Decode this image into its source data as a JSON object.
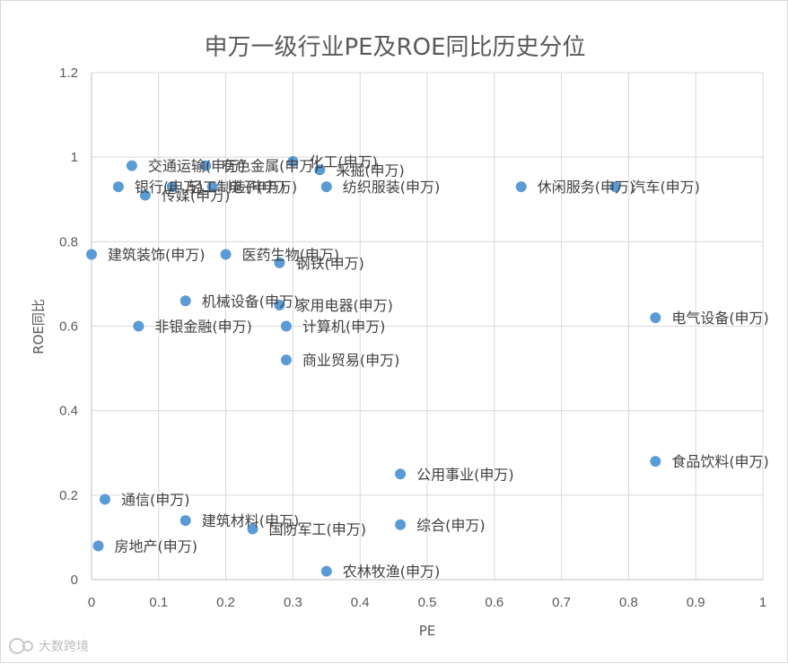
{
  "chart_data": {
    "type": "scatter",
    "title": "申万一级行业PE及ROE同比历史分位",
    "xlabel": "PE",
    "ylabel": "ROE同比",
    "xlim": [
      0,
      1
    ],
    "ylim": [
      0,
      1.2
    ],
    "x_ticks": [
      "0",
      "0.1",
      "0.2",
      "0.3",
      "0.4",
      "0.5",
      "0.6",
      "0.7",
      "0.8",
      "0.9",
      "1"
    ],
    "y_ticks": [
      "0",
      "0.2",
      "0.4",
      "0.6",
      "0.8",
      "1",
      "1.2"
    ],
    "grid": true,
    "marker_color": "#5b9bd5",
    "points": [
      {
        "label": "交通运输(申万)",
        "x": 0.06,
        "y": 0.98
      },
      {
        "label": "有色金属(申万)",
        "x": 0.17,
        "y": 0.98
      },
      {
        "label": "化工(申万)",
        "x": 0.3,
        "y": 0.99
      },
      {
        "label": "采掘(申万)",
        "x": 0.34,
        "y": 0.97
      },
      {
        "label": "银行(申万)",
        "x": 0.04,
        "y": 0.93
      },
      {
        "label": "轻工制造(申万)",
        "x": 0.12,
        "y": 0.93
      },
      {
        "label": "电子(申万)",
        "x": 0.18,
        "y": 0.93
      },
      {
        "label": "传媒(申万)",
        "x": 0.08,
        "y": 0.91
      },
      {
        "label": "纺织服装(申万)",
        "x": 0.35,
        "y": 0.93
      },
      {
        "label": "休闲服务(申万)",
        "x": 0.64,
        "y": 0.93
      },
      {
        "label": "汽车(申万)",
        "x": 0.78,
        "y": 0.93
      },
      {
        "label": "建筑装饰(申万)",
        "x": 0.0,
        "y": 0.77
      },
      {
        "label": "医药生物(申万)",
        "x": 0.2,
        "y": 0.77
      },
      {
        "label": "钢铁(申万)",
        "x": 0.28,
        "y": 0.75
      },
      {
        "label": "机械设备(申万)",
        "x": 0.14,
        "y": 0.66
      },
      {
        "label": "家用电器(申万)",
        "x": 0.28,
        "y": 0.65
      },
      {
        "label": "非银金融(申万)",
        "x": 0.07,
        "y": 0.6
      },
      {
        "label": "计算机(申万)",
        "x": 0.29,
        "y": 0.6
      },
      {
        "label": "电气设备(申万)",
        "x": 0.84,
        "y": 0.62
      },
      {
        "label": "商业贸易(申万)",
        "x": 0.29,
        "y": 0.52
      },
      {
        "label": "食品饮料(申万)",
        "x": 0.84,
        "y": 0.28
      },
      {
        "label": "公用事业(申万)",
        "x": 0.46,
        "y": 0.25
      },
      {
        "label": "通信(申万)",
        "x": 0.02,
        "y": 0.19
      },
      {
        "label": "建筑材料(申万)",
        "x": 0.14,
        "y": 0.14
      },
      {
        "label": "国防军工(申万)",
        "x": 0.24,
        "y": 0.12
      },
      {
        "label": "综合(申万)",
        "x": 0.46,
        "y": 0.13
      },
      {
        "label": "房地产(申万)",
        "x": 0.01,
        "y": 0.08
      },
      {
        "label": "农林牧渔(申万)",
        "x": 0.35,
        "y": 0.02
      }
    ]
  },
  "watermark": {
    "text": "大数跨境",
    "icon": "watermark-logo-icon"
  }
}
